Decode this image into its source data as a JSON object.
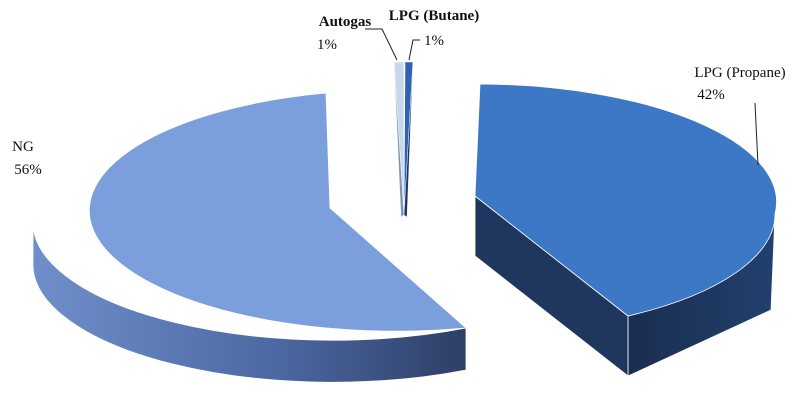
{
  "chart_data": {
    "type": "pie",
    "style": "3d-exploded",
    "slices": [
      {
        "label": "LPG (Propane)",
        "value": 42,
        "value_label": "42%",
        "color": "#3D78C6",
        "side_color": "#1C3257"
      },
      {
        "label": "NG",
        "value": 56,
        "value_label": "56%",
        "color": "#7A9FDC",
        "side_color": "#4A67A0"
      },
      {
        "label": "Autogas",
        "value": 1,
        "value_label": "1%",
        "color": "#C8D7EE",
        "side_color": "#7F93B5"
      },
      {
        "label": "LPG (Butane)",
        "value": 1,
        "value_label": "1%",
        "color": "#2E63B3",
        "side_color": "#1A3769"
      }
    ],
    "legend": "none"
  }
}
